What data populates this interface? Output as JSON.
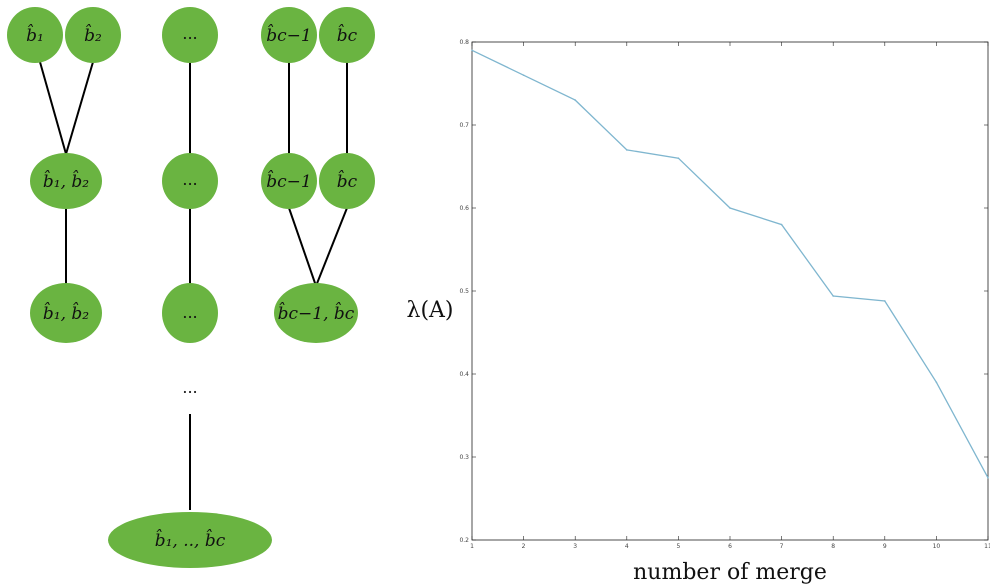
{
  "tree": {
    "top_row": [
      "b̂₁",
      "b̂₂",
      "...",
      "b̂c−1",
      "b̂c"
    ],
    "middle_row": [
      "b̂₁, b̂₂",
      "...",
      "b̂c−1",
      "b̂c"
    ],
    "bottom_row": [
      "b̂₁, b̂₂",
      "...",
      "b̂c−1, b̂c"
    ],
    "ellipsis": "...",
    "root": "b̂₁, .., b̂c",
    "node_color": "#6ab441"
  },
  "chart_data": {
    "type": "line",
    "xlabel": "number of merge",
    "ylabel": "λ(A)",
    "x": [
      1,
      2,
      3,
      4,
      5,
      6,
      7,
      8,
      9,
      10,
      11
    ],
    "xlim": [
      1,
      11
    ],
    "ylim": [
      0.2,
      0.8
    ],
    "xticks": [
      1,
      2,
      3,
      4,
      5,
      6,
      7,
      8,
      9,
      10,
      11
    ],
    "yticks": [
      0.2,
      0.3,
      0.4,
      0.5,
      0.6,
      0.7,
      0.8
    ],
    "series": [
      {
        "values": [
          0.79,
          0.76,
          0.73,
          0.67,
          0.66,
          0.6,
          0.58,
          0.494,
          0.488,
          0.39,
          0.275
        ],
        "color": "#7fb6cf"
      }
    ],
    "grid": false
  }
}
